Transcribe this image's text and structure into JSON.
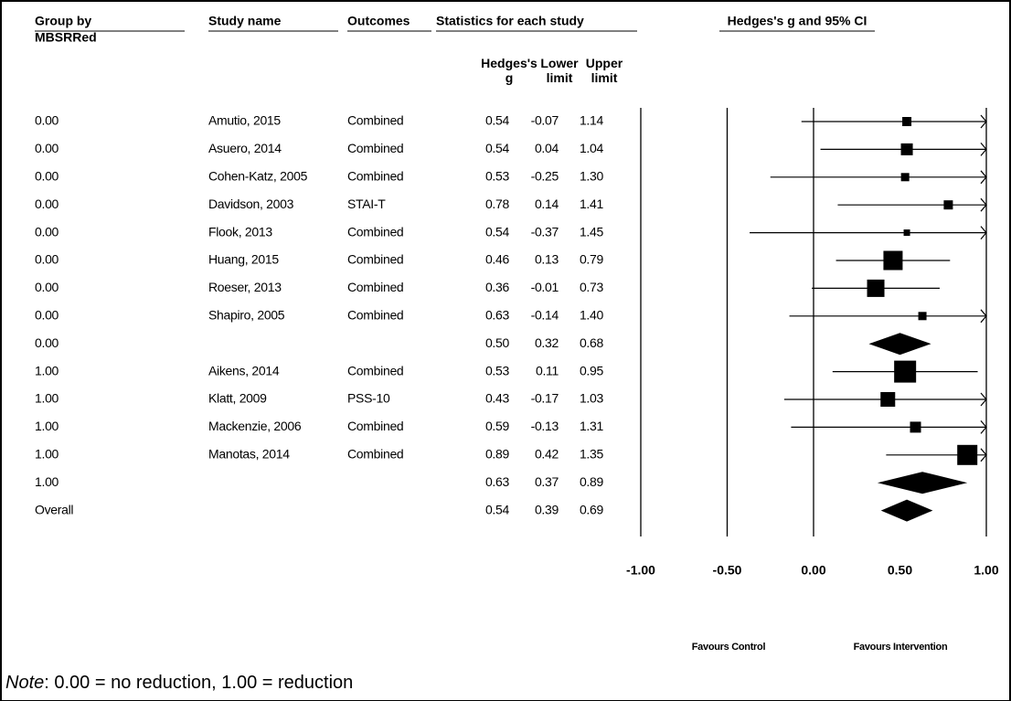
{
  "chart_data": {
    "type": "forest",
    "group_header": "Group by",
    "group_subheader": "MBSRRed",
    "study_header": "Study name",
    "outcome_header": "Outcomes",
    "stats_header": "Statistics for each study",
    "plot_header": "Hedges's g and 95% CI",
    "column_headers": [
      "Hedges's\ng",
      "Lower\nlimit",
      "Upper\nlimit"
    ],
    "groups": [
      "0.00",
      "0.00",
      "0.00",
      "0.00",
      "0.00",
      "0.00",
      "0.00",
      "0.00",
      "0.00",
      "1.00",
      "1.00",
      "1.00",
      "1.00",
      "1.00",
      "Overall"
    ],
    "studies": [
      "Amutio, 2015",
      "Asuero, 2014",
      "Cohen-Katz, 2005",
      "Davidson, 2003",
      "Flook, 2013",
      "Huang, 2015",
      "Roeser, 2013",
      "Shapiro, 2005",
      null,
      "Aikens, 2014",
      "Klatt, 2009",
      "Mackenzie, 2006",
      "Manotas, 2014",
      null,
      null
    ],
    "outcomes": [
      "Combined",
      "Combined",
      "Combined",
      "STAI-T",
      "Combined",
      "Combined",
      "Combined",
      "Combined",
      null,
      "Combined",
      "PSS-10",
      "Combined",
      "Combined",
      null,
      null
    ],
    "estimates": {
      "values": [
        0.54,
        0.54,
        0.53,
        0.78,
        0.54,
        0.46,
        0.36,
        0.63,
        0.5,
        0.53,
        0.43,
        0.59,
        0.89,
        0.63,
        0.54
      ],
      "value_labels": [
        "0.54",
        "0.54",
        "0.53",
        "0.78",
        "0.54",
        "0.46",
        "0.36",
        "0.63",
        "0.50",
        "0.53",
        "0.43",
        "0.59",
        "0.89",
        "0.63",
        "0.54"
      ]
    },
    "lower": {
      "values": [
        -0.07,
        0.04,
        -0.25,
        0.14,
        -0.37,
        0.13,
        -0.01,
        -0.14,
        0.32,
        0.11,
        -0.17,
        -0.13,
        0.42,
        0.37,
        0.39
      ],
      "value_labels": [
        "-0.07",
        "0.04",
        "-0.25",
        "0.14",
        "-0.37",
        "0.13",
        "-0.01",
        "-0.14",
        "0.32",
        "0.11",
        "-0.17",
        "-0.13",
        "0.42",
        "0.37",
        "0.39"
      ]
    },
    "upper": {
      "values": [
        1.14,
        1.04,
        1.3,
        1.41,
        1.45,
        0.79,
        0.73,
        1.4,
        0.68,
        0.95,
        1.03,
        1.31,
        1.35,
        0.89,
        0.69
      ],
      "value_labels": [
        "1.14",
        "1.04",
        "1.30",
        "1.41",
        "1.45",
        "0.79",
        "0.73",
        "1.40",
        "0.68",
        "0.95",
        "1.03",
        "1.31",
        "1.35",
        "0.89",
        "0.69"
      ]
    },
    "weights": [
      10,
      13,
      9,
      10,
      7,
      21,
      19,
      9,
      null,
      24,
      16,
      12,
      22,
      null,
      null
    ],
    "xlim": [
      -1,
      1
    ],
    "xticks": [
      {
        "value": -1,
        "label": "-1.00"
      },
      {
        "value": -0.5,
        "label": "-0.50"
      },
      {
        "value": 0,
        "label": "0.00"
      },
      {
        "value": 0.5,
        "label": "0.50"
      },
      {
        "value": 1,
        "label": "1.00"
      }
    ],
    "reference_lines": [
      -1,
      -0.5,
      0,
      1
    ],
    "favours_left": "Favours Control",
    "favours_right": "Favours Intervention",
    "color": "#000000"
  },
  "note": {
    "label": "Note",
    "text": ": 0.00 = no reduction, 1.00 = reduction"
  }
}
